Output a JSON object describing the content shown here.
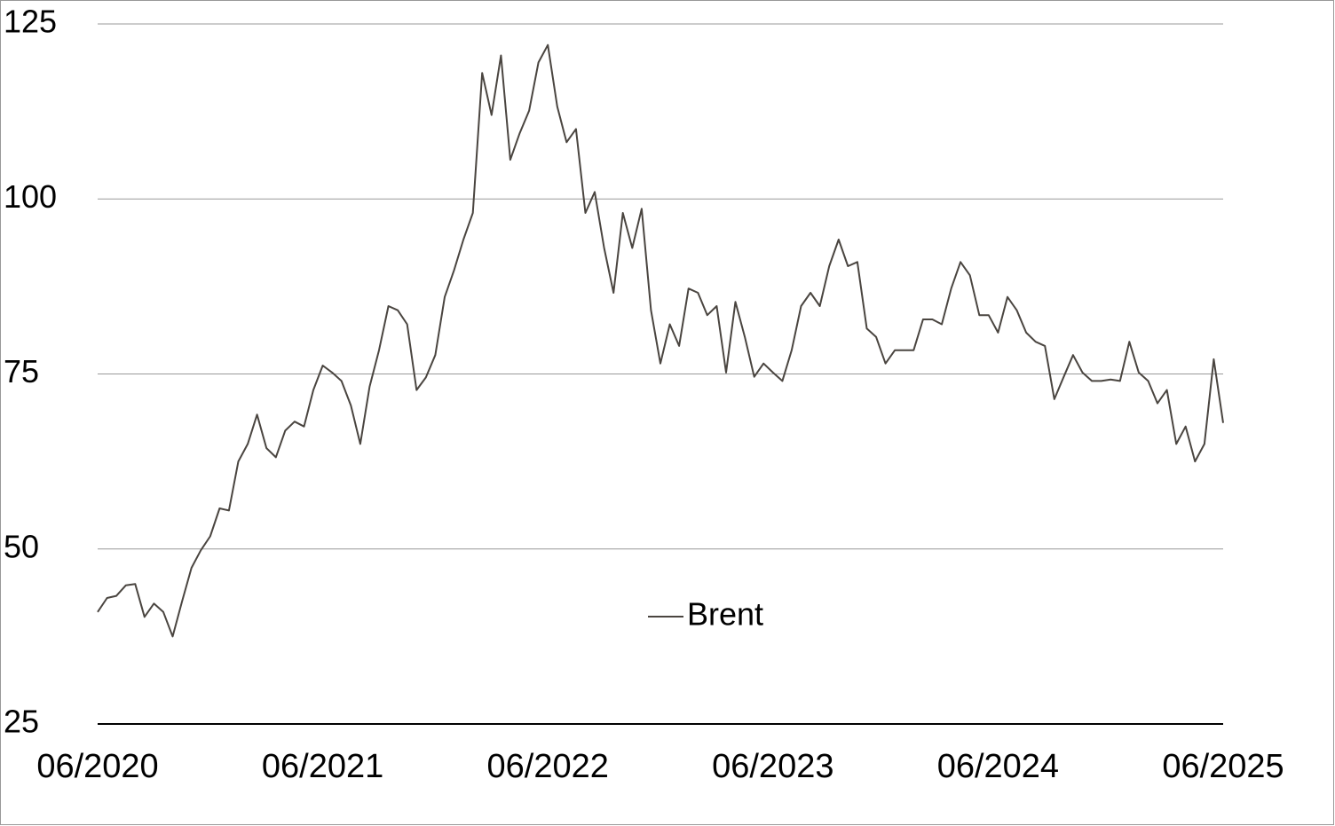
{
  "chart_data": {
    "type": "line",
    "categories": [
      "06/2020",
      null,
      null,
      null,
      null,
      null,
      null,
      null,
      null,
      null,
      null,
      null,
      null,
      null,
      null,
      null,
      null,
      null,
      null,
      null,
      null,
      null,
      null,
      null,
      "06/2021",
      null,
      null,
      null,
      null,
      null,
      null,
      null,
      null,
      null,
      null,
      null,
      null,
      null,
      null,
      null,
      null,
      null,
      null,
      null,
      null,
      null,
      null,
      null,
      "06/2022",
      null,
      null,
      null,
      null,
      null,
      null,
      null,
      null,
      null,
      null,
      null,
      null,
      null,
      null,
      null,
      null,
      null,
      null,
      null,
      null,
      null,
      null,
      null,
      "06/2023",
      null,
      null,
      null,
      null,
      null,
      null,
      null,
      null,
      null,
      null,
      null,
      null,
      null,
      null,
      null,
      null,
      null,
      null,
      null,
      null,
      null,
      null,
      null,
      "06/2024",
      null,
      null,
      null,
      null,
      null,
      null,
      null,
      null,
      null,
      null,
      null,
      null,
      null,
      null,
      null,
      null,
      null,
      null,
      null,
      null,
      null,
      null,
      null,
      "06/2025"
    ],
    "series": [
      {
        "name": "Brent",
        "color": "#4a4540",
        "values": [
          41,
          43,
          43.3,
          44.8,
          45,
          40.3,
          42.2,
          41,
          37.5,
          42.5,
          47.3,
          49.8,
          51.8,
          55.8,
          55.5,
          62.5,
          65,
          69.2,
          64.4,
          63.1,
          66.9,
          68.2,
          67.5,
          72.7,
          76.2,
          75.2,
          74,
          70.5,
          65,
          73.2,
          78.4,
          84.7,
          84.1,
          82.1,
          72.7,
          74.5,
          77.7,
          86,
          89.8,
          94.2,
          98,
          118,
          112,
          120.5,
          105.6,
          109.4,
          112.6,
          119.5,
          122,
          113.2,
          108.1,
          110,
          98,
          101,
          93,
          86.6,
          98,
          93,
          98.6,
          84.1,
          76.5,
          82.1,
          79,
          87.2,
          86.6,
          83.4,
          84.7,
          75.2,
          85.3,
          80.3,
          74.6,
          76.5,
          75.2,
          74,
          78.4,
          84.7,
          86.6,
          84.7,
          90.4,
          94.2,
          90.4,
          91,
          81.5,
          80.3,
          76.5,
          78.4,
          78.4,
          78.4,
          82.8,
          82.8,
          82.1,
          87.2,
          91,
          89.1,
          83.4,
          83.4,
          80.9,
          86,
          84.1,
          80.9,
          79.6,
          79,
          71.4,
          74.6,
          77.7,
          75.2,
          74,
          74,
          74.2,
          74,
          79.6,
          75.2,
          74,
          70.8,
          72.7,
          65,
          67.5,
          62.5,
          65,
          77.1,
          68
        ]
      }
    ],
    "ylim": [
      25,
      125
    ],
    "yticks": [
      25,
      50,
      75,
      100,
      125
    ],
    "grid": true,
    "legend": "center"
  }
}
